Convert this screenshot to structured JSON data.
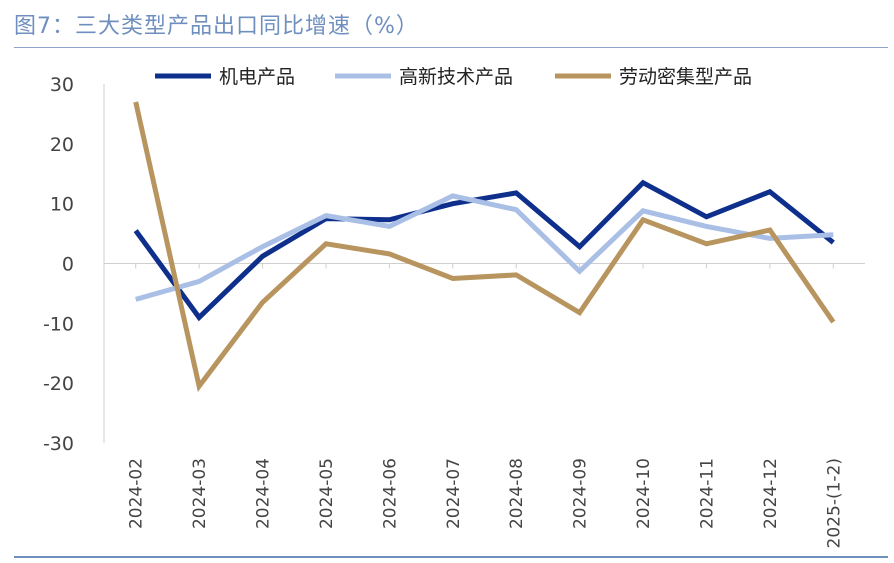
{
  "header": {
    "title": "图7：三大类型产品出口同比增速（%）"
  },
  "colors": {
    "title": "#6f8fbf",
    "rule": "#6f8fbf"
  },
  "chart_data": {
    "type": "line",
    "categories": [
      "2024-02",
      "2024-03",
      "2024-04",
      "2024-05",
      "2024-06",
      "2024-07",
      "2024-08",
      "2024-09",
      "2024-10",
      "2024-11",
      "2024-12",
      "2025-(1-2)"
    ],
    "series": [
      {
        "name": "机电产品",
        "color": "#0f2f8c",
        "values": [
          5.5,
          -9,
          1.2,
          7.5,
          7.3,
          10,
          11.8,
          2.8,
          13.5,
          7.8,
          12,
          3.5
        ]
      },
      {
        "name": "高新技术产品",
        "color": "#a9bfe6",
        "values": [
          -6,
          -3,
          2.8,
          8,
          6.2,
          11.3,
          9,
          -1.3,
          8.8,
          6.2,
          4.2,
          4.8
        ]
      },
      {
        "name": "劳动密集型产品",
        "color": "#b8955e",
        "values": [
          27,
          -20.5,
          -6.5,
          3.3,
          1.6,
          -2.5,
          -1.9,
          -8.2,
          7.3,
          3.3,
          5.6,
          -9.8
        ]
      }
    ],
    "yticks": [
      30,
      20,
      10,
      0,
      -10,
      -20,
      -30
    ],
    "ylim": [
      -30,
      30
    ],
    "grid": false,
    "legend_position": "top"
  }
}
